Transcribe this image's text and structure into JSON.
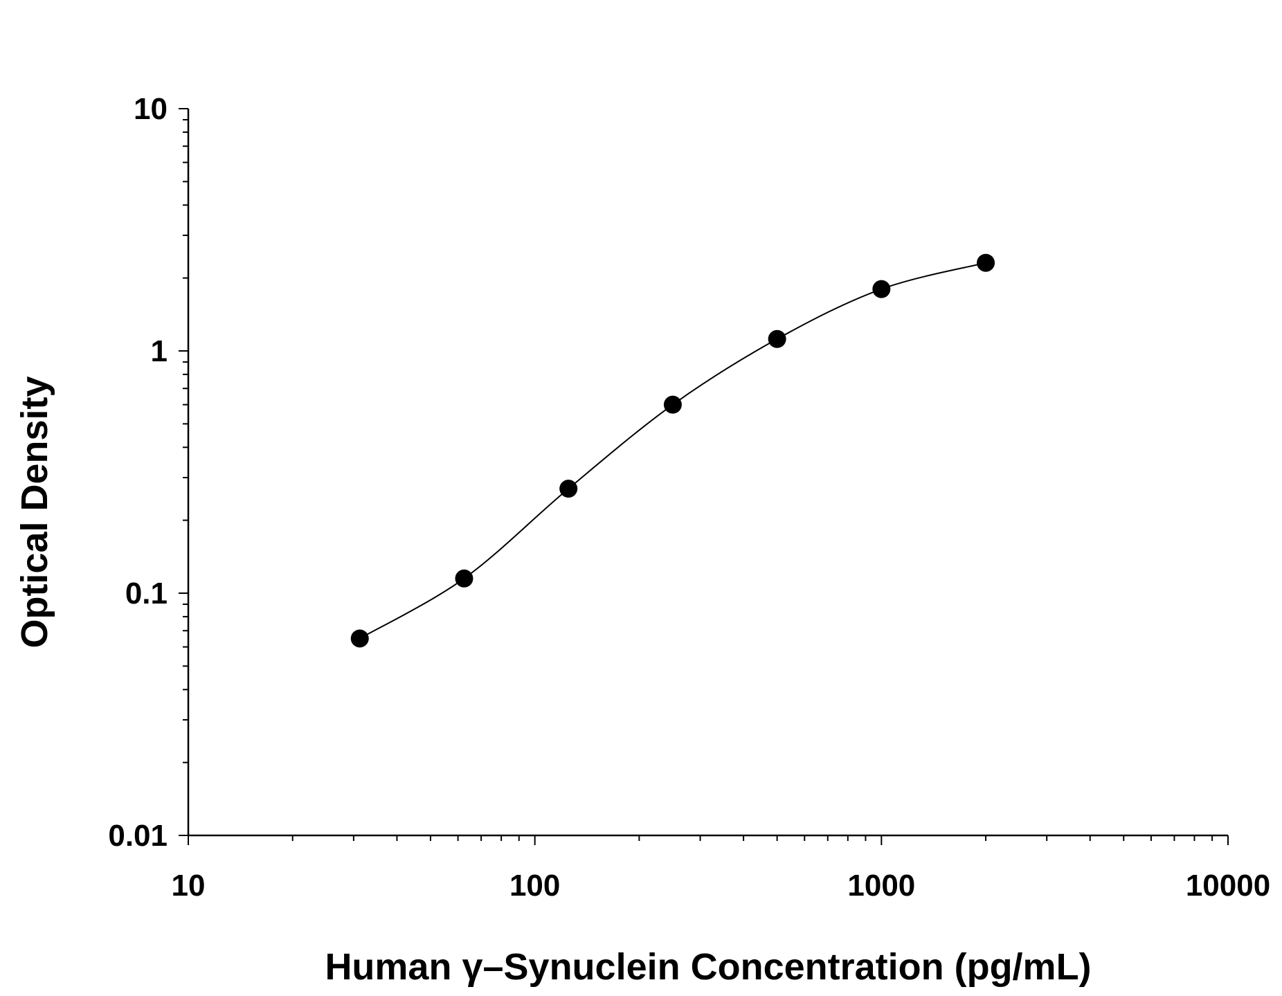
{
  "chart_data": {
    "type": "scatter",
    "xlabel": "Human γ–Synuclein Concentration (pg/mL)",
    "ylabel": "Optical Density",
    "xscale": "log",
    "yscale": "log",
    "xlim": [
      10,
      10000
    ],
    "ylim": [
      0.01,
      10
    ],
    "x_ticks": [
      "10",
      "100",
      "1000",
      "10000"
    ],
    "y_ticks": [
      "0.01",
      "0.1",
      "1",
      "10"
    ],
    "grid": false,
    "fit_line": true,
    "series": [
      {
        "x": [
          31.25,
          62.5,
          125,
          250,
          500,
          1000,
          2000
        ],
        "y": [
          0.065,
          0.115,
          0.27,
          0.6,
          1.12,
          1.8,
          2.31
        ]
      }
    ],
    "colors": {
      "points": "#000000",
      "line": "#000000"
    }
  }
}
